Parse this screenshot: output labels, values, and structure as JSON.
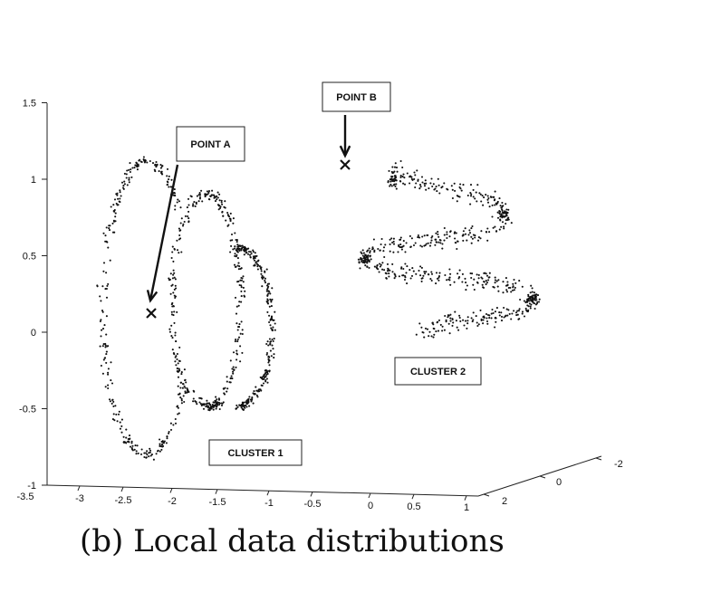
{
  "caption": "(b) Local data distributions",
  "chart_data": {
    "type": "scatter",
    "projection": "3d",
    "title": "",
    "xlabel": "",
    "ylabel": "",
    "zlabel": "",
    "grid": false,
    "x_ticks": [
      "-3.5",
      "-3",
      "-2.5",
      "-2",
      "-1.5",
      "-1",
      "-0.5",
      "0",
      "0.5",
      "1"
    ],
    "y_ticks": [
      "2",
      "0",
      "-2"
    ],
    "z_ticks": [
      "-1",
      "-0.5",
      "0",
      "0.5",
      "1",
      "1.5"
    ],
    "xlim": [
      -3.5,
      1
    ],
    "ylim": [
      2,
      -2
    ],
    "zlim": [
      -1,
      1.5
    ],
    "series": [
      {
        "description": "two interleaved noisy rings",
        "color": "#111111",
        "approx_points": 900
      },
      {
        "description": "noisy S-shaped curve",
        "color": "#111111",
        "approx_points": 700
      }
    ],
    "markers": [
      {
        "label": "POINT A",
        "symbol": "x"
      },
      {
        "label": "POINT B",
        "symbol": "x"
      }
    ],
    "annotations": [
      {
        "label": "CLUSTER 1"
      },
      {
        "label": "CLUSTER 2"
      }
    ]
  }
}
